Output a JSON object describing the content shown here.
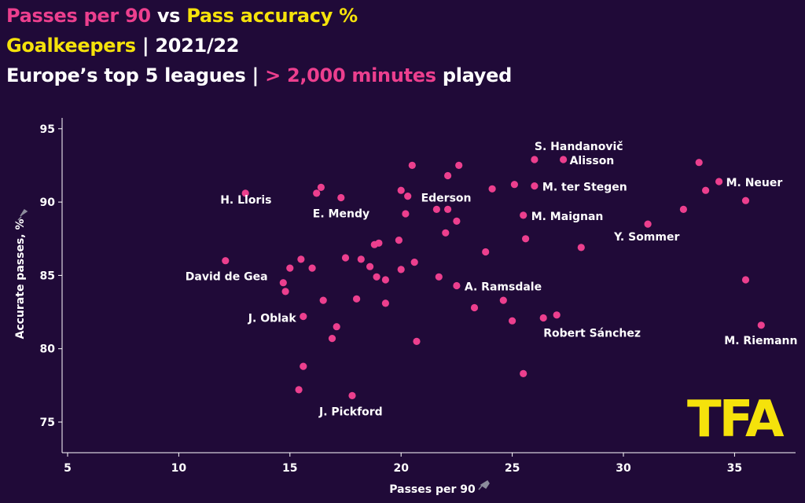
{
  "title": {
    "line1": {
      "part1": "Passes per 90",
      "part2": " vs ",
      "part3": "Pass accuracy %"
    },
    "line2": {
      "part1": "Goalkeepers",
      "part2": " | 2021/22"
    },
    "line3": {
      "part1": "Europe’s top 5 leagues | ",
      "part2": "> 2,000 minutes",
      "part3": " played"
    }
  },
  "colors": {
    "background": "#200a38",
    "points": "#ec3f8e",
    "accent_yellow": "#f5e20b",
    "axis": "#ffffff"
  },
  "logo": "TFA",
  "chart_data": {
    "type": "scatter",
    "xlabel": "Passes per 90",
    "ylabel": "Accurate passes, %",
    "xlim": [
      5,
      38
    ],
    "ylim": [
      74,
      96.5
    ],
    "xticks": [
      5,
      10,
      15,
      20,
      25,
      30,
      35
    ],
    "yticks": [
      75,
      80,
      85,
      90,
      95
    ],
    "grid": false,
    "points": [
      {
        "x": 13.0,
        "y": 90.6,
        "label": "H. Lloris"
      },
      {
        "x": 12.1,
        "y": 86.0,
        "label": "David de Gea"
      },
      {
        "x": 15.6,
        "y": 82.2,
        "label": "J. Oblak"
      },
      {
        "x": 17.8,
        "y": 76.8,
        "label": "J. Pickford"
      },
      {
        "x": 17.3,
        "y": 90.3,
        "label": "E. Mendy"
      },
      {
        "x": 22.5,
        "y": 84.3,
        "label": "A. Ramsdale"
      },
      {
        "x": 22.1,
        "y": 91.8,
        "label": "Ederson"
      },
      {
        "x": 26.0,
        "y": 92.9,
        "label": "S. Handanovič"
      },
      {
        "x": 27.3,
        "y": 92.9,
        "label": "Alisson"
      },
      {
        "x": 26.0,
        "y": 91.1,
        "label": "M. ter Stegen"
      },
      {
        "x": 25.5,
        "y": 89.1,
        "label": "M. Maignan"
      },
      {
        "x": 31.1,
        "y": 88.5,
        "label": "Y. Sommer"
      },
      {
        "x": 34.3,
        "y": 91.4,
        "label": "M. Neuer"
      },
      {
        "x": 26.4,
        "y": 82.1,
        "label": "Robert Sánchez"
      },
      {
        "x": 36.2,
        "y": 81.6,
        "label": "M. Riemann"
      },
      {
        "x": 16.2,
        "y": 90.6,
        "label": ""
      },
      {
        "x": 16.4,
        "y": 91.0,
        "label": ""
      },
      {
        "x": 20.5,
        "y": 92.5,
        "label": ""
      },
      {
        "x": 22.6,
        "y": 92.5,
        "label": ""
      },
      {
        "x": 20.0,
        "y": 90.8,
        "label": ""
      },
      {
        "x": 20.3,
        "y": 90.4,
        "label": ""
      },
      {
        "x": 24.1,
        "y": 90.9,
        "label": ""
      },
      {
        "x": 25.1,
        "y": 91.2,
        "label": ""
      },
      {
        "x": 33.4,
        "y": 92.7,
        "label": ""
      },
      {
        "x": 33.7,
        "y": 90.8,
        "label": ""
      },
      {
        "x": 35.5,
        "y": 90.1,
        "label": ""
      },
      {
        "x": 32.7,
        "y": 89.5,
        "label": ""
      },
      {
        "x": 20.2,
        "y": 89.2,
        "label": ""
      },
      {
        "x": 21.6,
        "y": 89.5,
        "label": ""
      },
      {
        "x": 22.1,
        "y": 89.5,
        "label": ""
      },
      {
        "x": 22.5,
        "y": 88.7,
        "label": ""
      },
      {
        "x": 22.0,
        "y": 87.9,
        "label": ""
      },
      {
        "x": 19.9,
        "y": 87.4,
        "label": ""
      },
      {
        "x": 19.0,
        "y": 87.2,
        "label": ""
      },
      {
        "x": 18.8,
        "y": 87.1,
        "label": ""
      },
      {
        "x": 23.8,
        "y": 86.6,
        "label": ""
      },
      {
        "x": 25.6,
        "y": 87.5,
        "label": ""
      },
      {
        "x": 28.1,
        "y": 86.9,
        "label": ""
      },
      {
        "x": 15.5,
        "y": 86.1,
        "label": ""
      },
      {
        "x": 17.5,
        "y": 86.2,
        "label": ""
      },
      {
        "x": 18.2,
        "y": 86.1,
        "label": ""
      },
      {
        "x": 18.6,
        "y": 85.6,
        "label": ""
      },
      {
        "x": 20.6,
        "y": 85.9,
        "label": ""
      },
      {
        "x": 20.0,
        "y": 85.4,
        "label": ""
      },
      {
        "x": 15.0,
        "y": 85.5,
        "label": ""
      },
      {
        "x": 16.0,
        "y": 85.5,
        "label": ""
      },
      {
        "x": 18.9,
        "y": 84.9,
        "label": ""
      },
      {
        "x": 19.3,
        "y": 84.7,
        "label": ""
      },
      {
        "x": 21.7,
        "y": 84.9,
        "label": ""
      },
      {
        "x": 35.5,
        "y": 84.7,
        "label": ""
      },
      {
        "x": 14.7,
        "y": 84.5,
        "label": ""
      },
      {
        "x": 14.8,
        "y": 83.9,
        "label": ""
      },
      {
        "x": 16.5,
        "y": 83.3,
        "label": ""
      },
      {
        "x": 18.0,
        "y": 83.4,
        "label": ""
      },
      {
        "x": 19.3,
        "y": 83.1,
        "label": ""
      },
      {
        "x": 23.3,
        "y": 82.8,
        "label": ""
      },
      {
        "x": 24.6,
        "y": 83.3,
        "label": ""
      },
      {
        "x": 25.0,
        "y": 81.9,
        "label": ""
      },
      {
        "x": 27.0,
        "y": 82.3,
        "label": ""
      },
      {
        "x": 17.1,
        "y": 81.5,
        "label": ""
      },
      {
        "x": 16.9,
        "y": 80.7,
        "label": ""
      },
      {
        "x": 20.7,
        "y": 80.5,
        "label": ""
      },
      {
        "x": 15.6,
        "y": 78.8,
        "label": ""
      },
      {
        "x": 25.5,
        "y": 78.3,
        "label": ""
      },
      {
        "x": 15.4,
        "y": 77.2,
        "label": ""
      }
    ]
  }
}
